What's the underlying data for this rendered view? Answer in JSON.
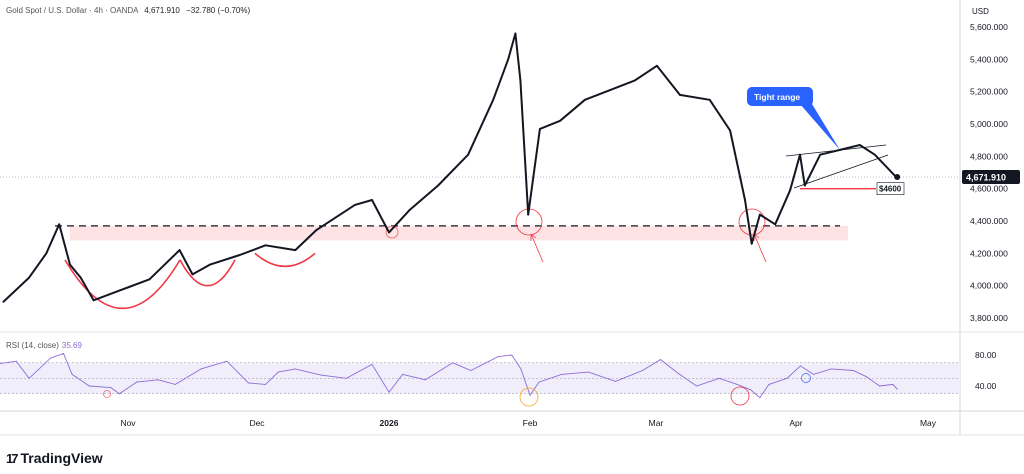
{
  "header": {
    "symbol": "Gold Spot / U.S. Dollar · 4h · OANDA",
    "last": "4,671.910",
    "change": "−32.780 (−0.70%)"
  },
  "price_axis": {
    "currency": "USD",
    "last_label": "4,671.910"
  },
  "rsi": {
    "label": "RSI (14, close)",
    "value": "35.69"
  },
  "annotations": {
    "callout": "Tight range",
    "support_label": "$4600"
  },
  "brand": {
    "name": "TradingView"
  },
  "colors": {
    "line": "#131722",
    "rsi": "#8e6bd8",
    "annot": "#f23645",
    "callout": "#2962ff",
    "band": "#fde3e3"
  },
  "chart_data": [
    {
      "type": "line",
      "title": "Gold Spot / U.S. Dollar · 4h · OANDA",
      "x_unit": "days since Oct 1 2025",
      "ylabel": "USD",
      "ylim": [
        3700,
        5700
      ],
      "yticks": [
        "3,800.000",
        "4,000.000",
        "4,200.000",
        "4,400.000",
        "4,600.000",
        "4,800.000",
        "5,000.000",
        "5,200.000",
        "5,400.000",
        "5,600.000"
      ],
      "ytick_values": [
        3800,
        4000,
        4200,
        4400,
        4600,
        4800,
        5000,
        5200,
        5400,
        5600
      ],
      "xticks": [
        {
          "label": "Nov",
          "day": 31
        },
        {
          "label": "Dec",
          "day": 61
        },
        {
          "label": "2026",
          "day": 92
        },
        {
          "label": "Feb",
          "day": 123
        },
        {
          "label": "Mar",
          "day": 151
        },
        {
          "label": "Apr",
          "day": 182
        },
        {
          "label": "May",
          "day": 212
        }
      ],
      "x": [
        2,
        8,
        12,
        15,
        17.5,
        20,
        23,
        29,
        36,
        43,
        46,
        50,
        57,
        63,
        70,
        75,
        84,
        88,
        92,
        96.6,
        102.8,
        109.4,
        114.9,
        118.2,
        119.8,
        120.9,
        122.6,
        125.2,
        129.7,
        135.2,
        140.8,
        146.3,
        151.2,
        156.3,
        162.9,
        167.4,
        170.7,
        172.2,
        174,
        177.4,
        180.7,
        182.9,
        184,
        187.5,
        192,
        196.5,
        199.9,
        204.5,
        205
      ],
      "y": [
        3900,
        4050,
        4200,
        4380,
        4130,
        4050,
        3910,
        3970,
        4040,
        4220,
        4070,
        4130,
        4190,
        4250,
        4220,
        4345,
        4500,
        4530,
        4330,
        4470,
        4620,
        4810,
        5150,
        5400,
        5560,
        5270,
        4440,
        4970,
        5020,
        5150,
        5210,
        5270,
        5360,
        5180,
        5150,
        4960,
        4530,
        4260,
        4440,
        4380,
        4590,
        4810,
        4620,
        4810,
        4840,
        4870,
        4810,
        4680,
        4672
      ],
      "support_level": 4370,
      "support_zone": [
        4280,
        4370
      ],
      "target_level": 4600
    },
    {
      "type": "line",
      "title": "RSI (14, close)",
      "ylim": [
        10,
        100
      ],
      "yticks": [
        "80.00",
        "40.00"
      ],
      "ytick_values": [
        80,
        40
      ],
      "bands": [
        70,
        50,
        30
      ],
      "x": [
        0,
        5,
        8,
        13,
        16,
        18,
        22,
        27,
        29,
        33,
        38,
        42,
        48,
        54,
        59,
        63,
        66,
        70,
        76,
        82,
        88,
        92,
        95,
        100,
        106,
        110,
        116,
        119,
        121,
        123,
        125,
        130,
        136,
        142,
        148,
        152,
        156,
        160,
        165,
        169,
        172,
        174,
        176,
        180,
        183,
        186,
        190,
        195,
        198,
        201,
        204,
        205
      ],
      "y": [
        68,
        72,
        50,
        76,
        82,
        55,
        40,
        38,
        30,
        45,
        48,
        42,
        62,
        72,
        44,
        42,
        58,
        62,
        54,
        50,
        68,
        32,
        55,
        48,
        70,
        60,
        78,
        80,
        62,
        28,
        45,
        55,
        58,
        46,
        60,
        74,
        56,
        40,
        50,
        42,
        35,
        25,
        42,
        50,
        66,
        55,
        62,
        60,
        52,
        40,
        42,
        36
      ]
    }
  ]
}
